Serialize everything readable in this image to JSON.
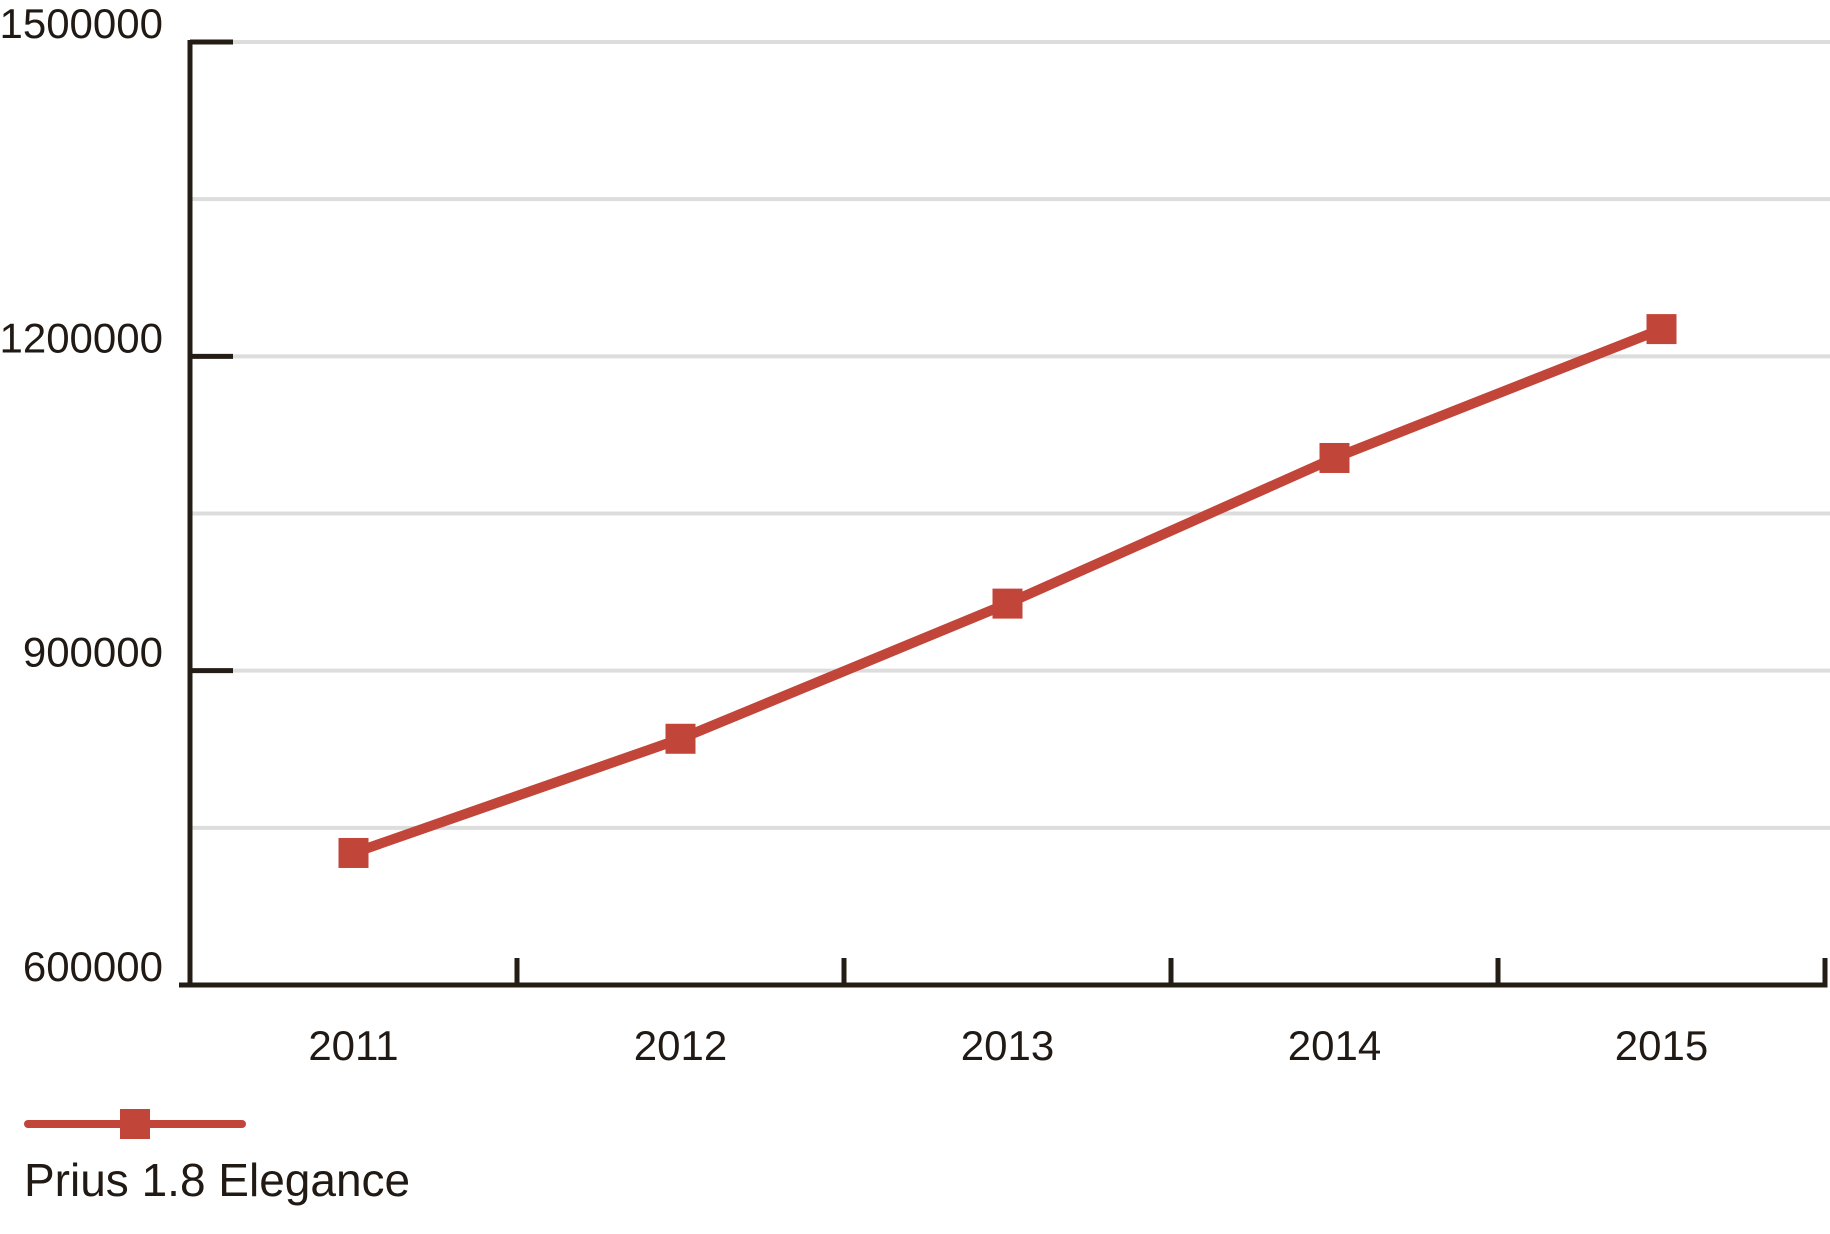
{
  "chart_data": {
    "type": "line",
    "title": "",
    "categories": [
      "2011",
      "2012",
      "2013",
      "2014",
      "2015"
    ],
    "series": [
      {
        "name": "Prius 1.8 Elegance",
        "values": [
          726000,
          835000,
          964000,
          1103000,
          1226000
        ],
        "marker": "square"
      }
    ],
    "xlabel": "",
    "ylabel": "",
    "ylim": [
      600000,
      1500000
    ],
    "ytick_labeled_values": [
      600000,
      900000,
      1200000,
      1500000
    ],
    "ytick_labels": [
      "600000",
      "900000",
      "1200000",
      "1500000"
    ],
    "ytick_minor_values": [
      750000,
      1050000,
      1350000
    ],
    "grid": "horizontal",
    "legend_position": "bottom-left"
  },
  "legend": {
    "label": "Prius 1.8 Elegance"
  },
  "colors": {
    "series": "#c2453a",
    "axis": "#241d16",
    "text": "#211a14",
    "grid": "#dddddd",
    "background": "#ffffff"
  }
}
